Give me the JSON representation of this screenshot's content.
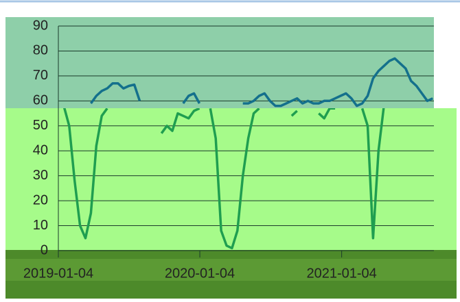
{
  "chart_data": {
    "type": "line",
    "x": [
      "2019-01-04",
      "2019-01-18",
      "2019-02-01",
      "2019-02-15",
      "2019-03-01",
      "2019-03-15",
      "2019-03-29",
      "2019-04-12",
      "2019-04-26",
      "2019-05-10",
      "2019-05-24",
      "2019-06-07",
      "2019-06-21",
      "2019-07-05",
      "2019-07-19",
      "2019-08-02",
      "2019-08-16",
      "2019-08-30",
      "2019-09-13",
      "2019-09-27",
      "2019-10-11",
      "2019-10-25",
      "2019-11-08",
      "2019-11-22",
      "2019-12-06",
      "2019-12-20",
      "2020-01-03",
      "2020-01-17",
      "2020-01-31",
      "2020-02-14",
      "2020-02-28",
      "2020-03-13",
      "2020-03-27",
      "2020-04-10",
      "2020-04-24",
      "2020-05-08",
      "2020-05-22",
      "2020-06-05",
      "2020-06-19",
      "2020-07-03",
      "2020-07-17",
      "2020-07-31",
      "2020-08-14",
      "2020-08-28",
      "2020-09-11",
      "2020-09-25",
      "2020-10-09",
      "2020-10-23",
      "2020-11-06",
      "2020-11-20",
      "2020-12-04",
      "2020-12-18",
      "2021-01-01",
      "2021-01-15",
      "2021-01-29",
      "2021-02-12",
      "2021-02-26",
      "2021-03-12",
      "2021-03-26",
      "2021-04-09",
      "2021-04-23",
      "2021-05-07",
      "2021-05-21",
      "2021-06-04",
      "2021-06-18",
      "2021-07-02",
      "2021-07-16",
      "2021-07-30",
      "2021-08-13",
      "2021-08-27"
    ],
    "series": [
      {
        "color": "#14708c",
        "values": [
          61,
          null,
          null,
          null,
          null,
          null,
          59,
          62,
          64,
          65,
          67,
          67,
          65,
          66,
          66.5,
          60,
          null,
          null,
          null,
          null,
          null,
          null,
          null,
          59,
          62,
          63,
          59,
          null,
          null,
          null,
          null,
          null,
          null,
          null,
          59,
          59,
          60,
          62,
          63,
          60,
          58,
          58,
          59,
          60,
          61,
          59,
          60,
          59,
          59,
          60,
          60,
          61,
          62,
          63,
          61,
          58,
          59,
          62,
          69,
          72,
          74,
          76,
          77,
          75,
          73,
          68,
          66,
          63,
          60,
          61
        ]
      },
      {
        "color": "#1f9e50",
        "values": [
          null,
          58,
          50,
          28,
          10,
          5,
          15,
          42,
          54,
          57,
          null,
          null,
          null,
          null,
          null,
          null,
          null,
          null,
          null,
          47,
          50,
          48,
          55,
          54,
          53,
          56,
          57,
          null,
          57,
          45,
          8,
          2,
          1,
          8,
          30,
          45,
          55,
          57,
          null,
          null,
          null,
          null,
          null,
          54,
          56,
          null,
          null,
          null,
          55,
          53,
          57,
          57,
          null,
          null,
          null,
          null,
          57,
          50,
          5,
          40,
          58,
          null,
          null,
          null,
          null,
          null,
          null,
          null,
          null,
          null
        ]
      }
    ],
    "xlim": [
      "2019-01-04",
      "2021-08-30"
    ],
    "xticks": [
      "2019-01-04",
      "2020-01-04",
      "2021-01-04"
    ],
    "ylim": [
      0,
      90
    ],
    "yticks": [
      0,
      10,
      20,
      30,
      40,
      50,
      60,
      70,
      80,
      90
    ],
    "grid": true
  }
}
